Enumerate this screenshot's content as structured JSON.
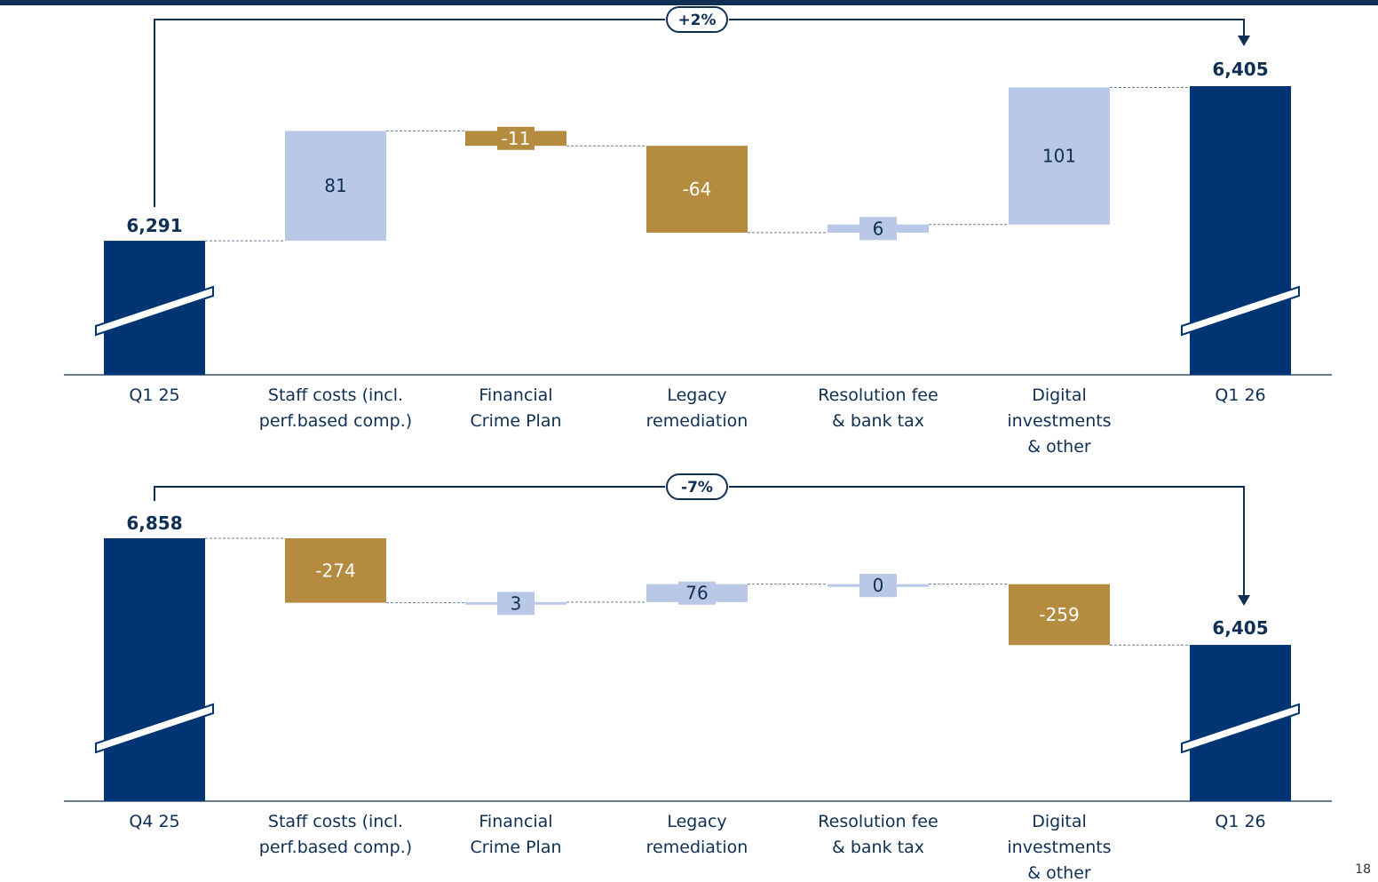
{
  "page_number": "18",
  "colors": {
    "navy": "#003473",
    "increase": "#b8c8e6",
    "decrease": "#b48b3f",
    "text": "#0f2f55"
  },
  "chart_data": [
    {
      "type": "waterfall",
      "title": "",
      "change_label": "+2%",
      "axis_break": true,
      "categories": [
        [
          "Q1 25"
        ],
        [
          "Staff costs (incl.",
          "perf.based comp.)"
        ],
        [
          "Financial",
          "Crime Plan"
        ],
        [
          "Legacy",
          "remediation"
        ],
        [
          "Resolution fee",
          "& bank tax"
        ],
        [
          "Digital",
          "investments",
          "& other"
        ],
        [
          "Q1 26"
        ]
      ],
      "start": {
        "value": 6291,
        "label": "6,291"
      },
      "steps": [
        {
          "value": 81,
          "label": "81"
        },
        {
          "value": -11,
          "label": "-11"
        },
        {
          "value": -64,
          "label": "-64"
        },
        {
          "value": 6,
          "label": "6"
        },
        {
          "value": 101,
          "label": "101"
        }
      ],
      "end": {
        "value": 6405,
        "label": "6,405"
      }
    },
    {
      "type": "waterfall",
      "title": "",
      "change_label": "-7%",
      "axis_break": true,
      "categories": [
        [
          "Q4 25"
        ],
        [
          "Staff costs (incl.",
          "perf.based comp.)"
        ],
        [
          "Financial",
          "Crime Plan"
        ],
        [
          "Legacy",
          "remediation"
        ],
        [
          "Resolution fee",
          "& bank tax"
        ],
        [
          "Digital",
          "investments",
          "& other"
        ],
        [
          "Q1 26"
        ]
      ],
      "start": {
        "value": 6858,
        "label": "6,858"
      },
      "steps": [
        {
          "value": -274,
          "label": "-274"
        },
        {
          "value": 3,
          "label": "3"
        },
        {
          "value": 76,
          "label": "76"
        },
        {
          "value": 0,
          "label": "0"
        },
        {
          "value": -259,
          "label": "-259"
        }
      ],
      "end": {
        "value": 6405,
        "label": "6,405"
      }
    }
  ]
}
